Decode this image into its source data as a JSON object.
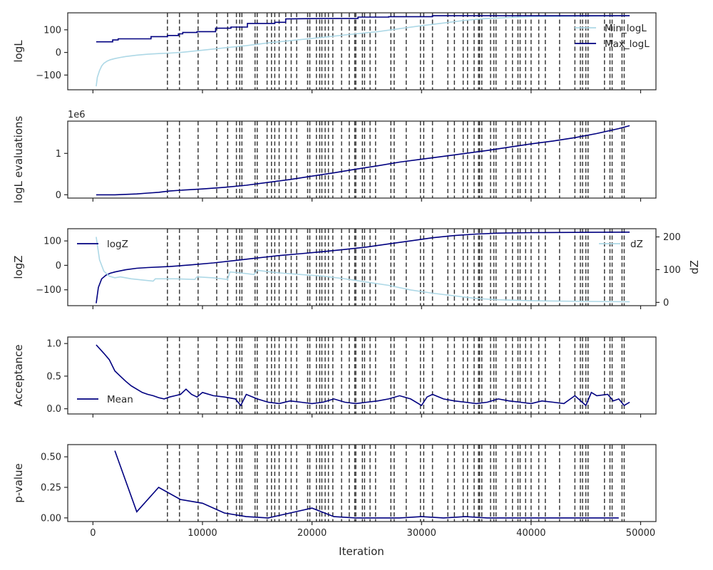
{
  "figure": {
    "xlabel": "Iteration",
    "xticks": [
      0,
      10000,
      20000,
      30000,
      40000,
      50000
    ],
    "xtick_labels": [
      "0",
      "10000",
      "20000",
      "30000",
      "40000",
      "50000"
    ],
    "xlim": [
      -2300,
      51400
    ]
  },
  "colors": {
    "min": "#add8e6",
    "max": "#000080",
    "vline": "#3a3a3a",
    "axis": "#262626"
  },
  "chart_data": [
    {
      "type": "line",
      "ylabel": "logL",
      "ylim": [
        -165,
        175
      ],
      "yticks": [
        -100,
        0,
        100
      ],
      "ytick_labels": [
        "−100",
        "0",
        "100"
      ],
      "legend": {
        "loc": "upper-right"
      },
      "series": [
        {
          "name": "Min_logL",
          "color": "#add8e6",
          "x": [
            300,
            400,
            600,
            800,
            1000,
            1300,
            1600,
            2000,
            2500,
            3000,
            4000,
            5000,
            6000,
            7000,
            8000,
            10000,
            12000,
            14000,
            16000,
            18000,
            20000,
            22000,
            24000,
            26000,
            28000,
            30000,
            32000,
            34000,
            36000,
            38000,
            40000,
            44000,
            49000
          ],
          "y": [
            -150,
            -110,
            -80,
            -60,
            -48,
            -38,
            -32,
            -27,
            -22,
            -18,
            -12,
            -8,
            -5,
            -3,
            0,
            10,
            20,
            30,
            42,
            52,
            62,
            72,
            82,
            92,
            105,
            118,
            130,
            142,
            150,
            155,
            158,
            160,
            162
          ]
        },
        {
          "name": "Max_logL",
          "color": "#000080",
          "x": [
            300,
            1800,
            1800,
            2300,
            2300,
            5300,
            5300,
            6800,
            6800,
            7800,
            7800,
            8200,
            8200,
            9500,
            9500,
            11200,
            11200,
            12600,
            12600,
            14100,
            14100,
            16600,
            16600,
            17600,
            17600,
            21000,
            23500,
            24200,
            24200,
            27000,
            27000,
            31000,
            31000,
            49000
          ],
          "y": [
            47,
            47,
            55,
            55,
            60,
            60,
            70,
            70,
            75,
            75,
            82,
            82,
            88,
            88,
            92,
            92,
            107,
            107,
            112,
            112,
            128,
            128,
            133,
            133,
            148,
            150,
            150,
            150,
            156,
            156,
            158,
            158,
            162,
            162
          ]
        }
      ]
    },
    {
      "type": "line",
      "ylabel": "logL evaluations",
      "offset_label": "1e6",
      "ylim": [
        -0.08,
        1.78
      ],
      "yticks": [
        0,
        1
      ],
      "ytick_labels": [
        "0",
        "1"
      ],
      "series": [
        {
          "name": "",
          "color": "#000080",
          "x": [
            300,
            2000,
            4000,
            5000,
            6000,
            7000,
            8000,
            10000,
            12000,
            14000,
            16000,
            18000,
            20000,
            22000,
            24000,
            26000,
            28000,
            30000,
            32000,
            34000,
            36000,
            38000,
            40000,
            42000,
            44000,
            46000,
            48000,
            49000
          ],
          "y": [
            0.0,
            0.0,
            0.02,
            0.04,
            0.06,
            0.09,
            0.11,
            0.14,
            0.18,
            0.23,
            0.3,
            0.37,
            0.45,
            0.53,
            0.62,
            0.7,
            0.79,
            0.86,
            0.93,
            1.0,
            1.07,
            1.15,
            1.23,
            1.3,
            1.38,
            1.48,
            1.6,
            1.67
          ]
        }
      ]
    },
    {
      "type": "line",
      "ylabel": "logZ",
      "ylabel_right": "dZ",
      "ylim": [
        -165,
        150
      ],
      "yticks": [
        -100,
        0,
        100
      ],
      "ytick_labels": [
        "−100",
        "0",
        "100"
      ],
      "ylim_right": [
        -10,
        225
      ],
      "yticks_right": [
        0,
        100,
        200
      ],
      "ytick_labels_right": [
        "0",
        "100",
        "200"
      ],
      "legend_left": {
        "loc": "upper-left"
      },
      "legend_right": {
        "loc": "upper-right"
      },
      "series": [
        {
          "name": "logZ",
          "color": "#000080",
          "axis": "left",
          "x": [
            300,
            500,
            800,
            1200,
            1600,
            2000,
            3000,
            4000,
            5000,
            7000,
            9000,
            11000,
            13000,
            15000,
            17000,
            19000,
            21000,
            23000,
            25000,
            27000,
            29000,
            31000,
            33000,
            35000,
            37000,
            40000,
            45000,
            49000
          ],
          "y": [
            -155,
            -90,
            -55,
            -40,
            -32,
            -27,
            -18,
            -12,
            -9,
            -5,
            2,
            10,
            20,
            30,
            40,
            48,
            56,
            65,
            75,
            88,
            100,
            113,
            122,
            128,
            132,
            134,
            135,
            136
          ]
        },
        {
          "name": "dZ",
          "color": "#add8e6",
          "axis": "right",
          "x": [
            300,
            600,
            1000,
            1500,
            2000,
            2500,
            3500,
            5500,
            5700,
            7500,
            9300,
            9500,
            11000,
            12300,
            12500,
            13500,
            14700,
            15000,
            17000,
            19000,
            21000,
            23000,
            25000,
            27000,
            29000,
            31000,
            33000,
            35000,
            37000,
            40000,
            45000,
            49000
          ],
          "y": [
            200,
            130,
            95,
            80,
            75,
            78,
            72,
            65,
            72,
            72,
            70,
            78,
            75,
            70,
            93,
            90,
            85,
            98,
            90,
            85,
            80,
            72,
            62,
            52,
            38,
            28,
            20,
            12,
            8,
            5,
            3,
            2
          ]
        }
      ]
    },
    {
      "type": "line",
      "ylabel": "Acceptance",
      "ylim": [
        -0.08,
        1.1
      ],
      "yticks": [
        0.0,
        0.5,
        1.0
      ],
      "ytick_labels": [
        "0.0",
        "0.5",
        "1.0"
      ],
      "legend": {
        "loc": "lower-left"
      },
      "series": [
        {
          "name": "Mean",
          "color": "#000080",
          "x": [
            300,
            1000,
            1500,
            2000,
            2500,
            3000,
            3500,
            4000,
            4500,
            5000,
            5500,
            6000,
            6500,
            7000,
            7500,
            8000,
            8500,
            9000,
            9500,
            10000,
            11000,
            12000,
            13000,
            13500,
            14000,
            15000,
            16000,
            17000,
            18000,
            19000,
            20000,
            21000,
            22000,
            23000,
            24000,
            25000,
            26000,
            27000,
            28000,
            29000,
            30000,
            30500,
            31000,
            32000,
            33000,
            34000,
            35000,
            36000,
            37000,
            38000,
            39000,
            40000,
            41000,
            42000,
            43000,
            44000,
            45000,
            45500,
            46000,
            47000,
            47500,
            48000,
            48500,
            49000
          ],
          "y": [
            0.98,
            0.85,
            0.75,
            0.58,
            0.5,
            0.42,
            0.35,
            0.3,
            0.25,
            0.22,
            0.2,
            0.17,
            0.15,
            0.18,
            0.2,
            0.22,
            0.3,
            0.22,
            0.18,
            0.25,
            0.2,
            0.18,
            0.15,
            0.05,
            0.22,
            0.15,
            0.1,
            0.08,
            0.12,
            0.1,
            0.08,
            0.1,
            0.15,
            0.1,
            0.08,
            0.1,
            0.12,
            0.15,
            0.2,
            0.15,
            0.05,
            0.18,
            0.22,
            0.15,
            0.12,
            0.1,
            0.08,
            0.1,
            0.15,
            0.12,
            0.1,
            0.08,
            0.12,
            0.1,
            0.08,
            0.2,
            0.05,
            0.25,
            0.2,
            0.22,
            0.12,
            0.15,
            0.05,
            0.1
          ]
        }
      ]
    },
    {
      "type": "line",
      "ylabel": "p-value",
      "ylim": [
        -0.03,
        0.6
      ],
      "yticks": [
        0.0,
        0.25,
        0.5
      ],
      "ytick_labels": [
        "0.00",
        "0.25",
        "0.50"
      ],
      "series": [
        {
          "name": "",
          "color": "#000080",
          "x": [
            2000,
            4000,
            6000,
            8000,
            10000,
            12000,
            14000,
            16000,
            18000,
            20000,
            22000,
            24000,
            26000,
            28000,
            30000,
            32000,
            34000,
            36000,
            38000,
            40000,
            42000,
            44000,
            46000,
            48000
          ],
          "y": [
            0.55,
            0.05,
            0.25,
            0.15,
            0.12,
            0.04,
            0.01,
            0.0,
            0.04,
            0.08,
            0.01,
            0.0,
            0.0,
            0.0,
            0.01,
            0.0,
            0.01,
            0.0,
            0.0,
            0.0,
            0.0,
            0.0,
            0.0,
            0.0
          ]
        }
      ]
    }
  ],
  "vlines": [
    6800,
    7900,
    9600,
    11300,
    12300,
    13100,
    13400,
    13600,
    14800,
    15000,
    15900,
    16300,
    16600,
    17000,
    17600,
    18100,
    18600,
    19600,
    19800,
    20400,
    20700,
    20900,
    21200,
    21500,
    21900,
    22700,
    23400,
    23900,
    24000,
    24600,
    24800,
    25300,
    25800,
    27200,
    27500,
    28600,
    29900,
    30200,
    31000,
    32400,
    33000,
    33800,
    34200,
    34800,
    35200,
    35300,
    35500,
    36300,
    36600,
    36800,
    37700,
    38300,
    38800,
    39000,
    39500,
    40000,
    40700,
    41300,
    42600,
    44000,
    44500,
    44700,
    45000,
    45200,
    46700,
    47200,
    47400,
    48300,
    48500
  ]
}
